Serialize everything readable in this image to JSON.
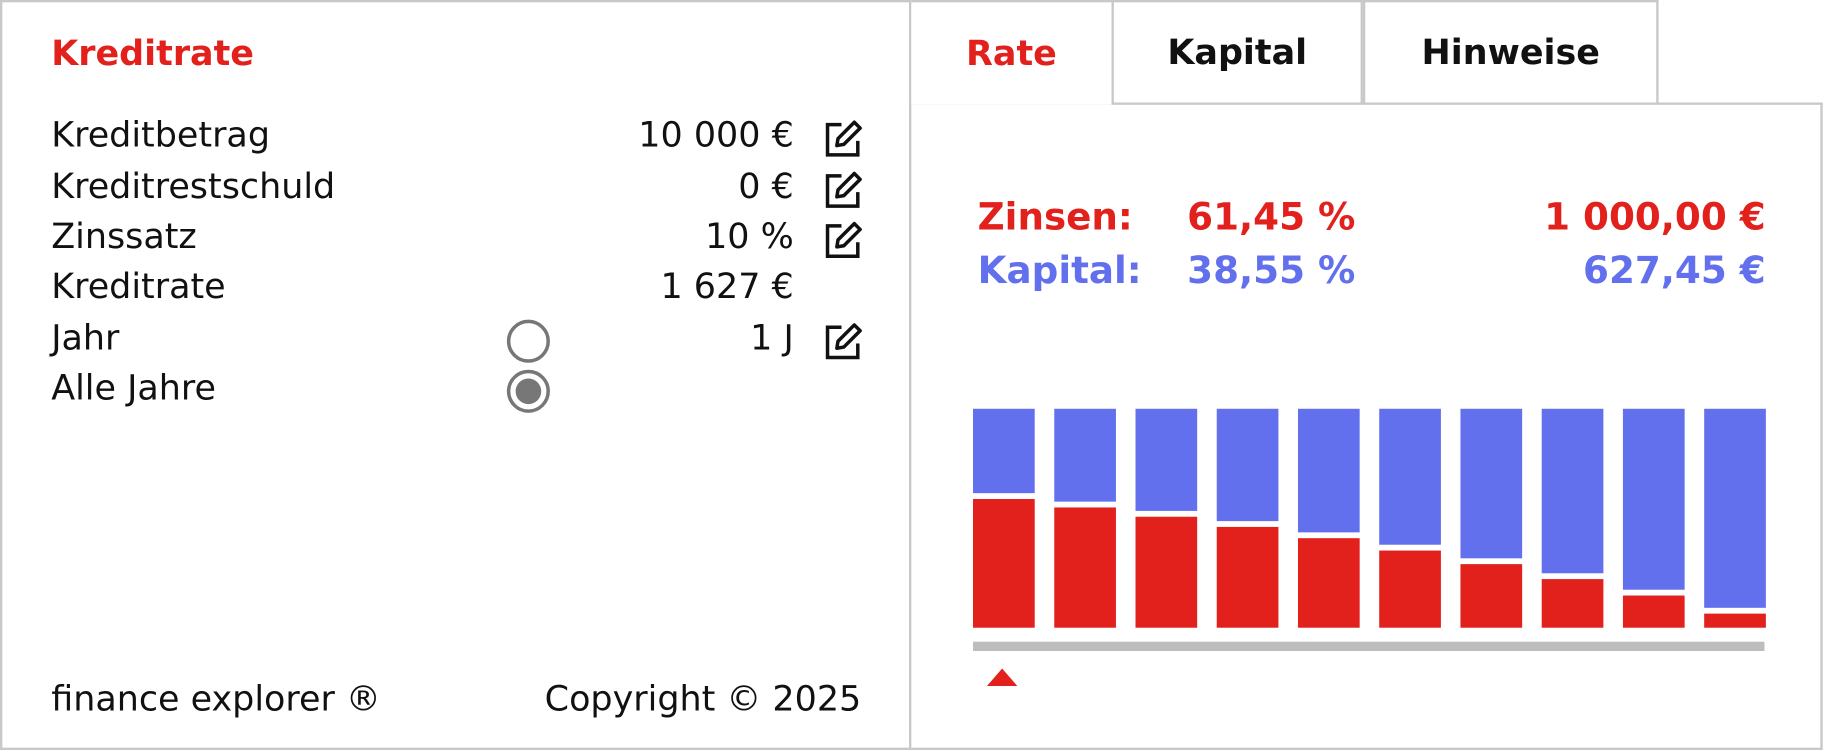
{
  "header": {
    "title": "Kreditrate"
  },
  "inputs": [
    {
      "label": "Kreditbetrag",
      "value": "10 000 €",
      "editable": true
    },
    {
      "label": "Kreditrestschuld",
      "value": "0 €",
      "editable": true
    },
    {
      "label": "Zinssatz",
      "value": "10 %",
      "editable": true
    },
    {
      "label": "Kreditrate",
      "value": "1 627  €",
      "editable": false
    },
    {
      "label": "Jahr",
      "value": "1 J",
      "editable": true,
      "selected": false
    },
    {
      "label": "Alle Jahre",
      "selected": true
    }
  ],
  "footer": {
    "brand": "finance explorer ®",
    "copyright": "Copyright © 2025"
  },
  "tabs": [
    "Rate",
    "Kapital",
    "Hinweise"
  ],
  "active_tab": 0,
  "summary": [
    {
      "label": "Zinsen:",
      "percent": "61,45 %",
      "amount": "1 000,00 €",
      "color": "#e2201c"
    },
    {
      "label": "Kapital:",
      "percent": "38,55 %",
      "amount": "627,45 €",
      "color": "#6270ee"
    }
  ],
  "chart": {
    "type": "bar",
    "stacked": true,
    "ylim": [
      0,
      100
    ],
    "series": [
      {
        "color": "#e2201c",
        "values": [
          61.45,
          57.59,
          53.35,
          48.69,
          43.55,
          37.91,
          31.7,
          24.87,
          17.36,
          9.09
        ]
      },
      {
        "color": "#6270ee",
        "values": [
          38.55,
          42.41,
          46.65,
          51.31,
          56.45,
          62.09,
          68.3,
          75.13,
          82.64,
          90.91
        ]
      }
    ]
  }
}
